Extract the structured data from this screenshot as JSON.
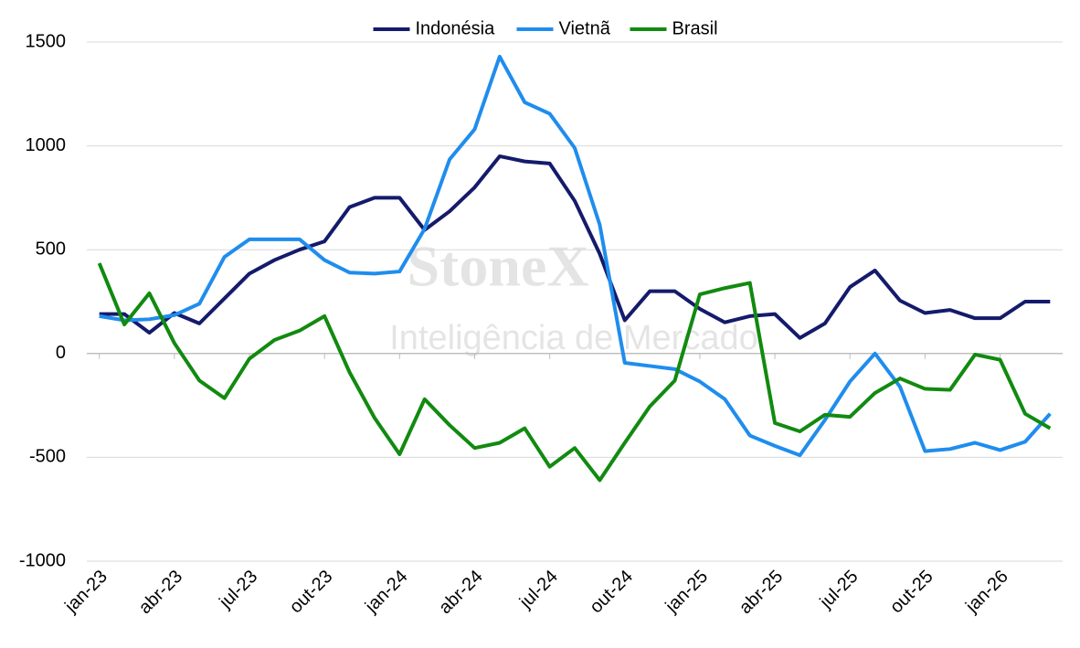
{
  "chart_data": {
    "type": "line",
    "watermark": [
      "StoneX",
      "Inteligência de Mercado"
    ],
    "categories": [
      "jan-23",
      null,
      null,
      "abr-23",
      null,
      null,
      "jul-23",
      null,
      null,
      "out-23",
      null,
      null,
      "jan-24",
      null,
      null,
      "abr-24",
      null,
      null,
      "jul-24",
      null,
      null,
      "out-24",
      null,
      null,
      "jan-25",
      null,
      null,
      "abr-25",
      null,
      null,
      "jul-25",
      null,
      null,
      "out-25",
      null,
      null,
      "jan-26",
      null,
      null
    ],
    "series": [
      {
        "name": "Indonésia",
        "color": "#141b6b",
        "values": [
          190,
          190,
          100,
          195,
          145,
          265,
          385,
          450,
          500,
          540,
          705,
          750,
          750,
          595,
          685,
          800,
          950,
          925,
          915,
          735,
          480,
          160,
          300,
          300,
          215,
          150,
          180,
          190,
          75,
          145,
          320,
          400,
          255,
          195,
          210,
          170,
          170,
          250,
          250
        ]
      },
      {
        "name": "Vietnã",
        "color": "#1f8ded",
        "values": [
          180,
          160,
          165,
          185,
          240,
          465,
          550,
          550,
          550,
          450,
          390,
          385,
          395,
          600,
          935,
          1080,
          1430,
          1210,
          1155,
          990,
          620,
          -45,
          -60,
          -75,
          -135,
          -220,
          -395,
          -445,
          -490,
          -320,
          -135,
          0,
          -160,
          -470,
          -460,
          -430,
          -465,
          -425,
          -290
        ]
      },
      {
        "name": "Brasil",
        "color": "#118a10",
        "values": [
          435,
          140,
          290,
          50,
          -130,
          -215,
          -25,
          65,
          110,
          180,
          -90,
          -310,
          -485,
          -220,
          -345,
          -455,
          -430,
          -360,
          -545,
          -455,
          -610,
          -430,
          -255,
          -130,
          285,
          315,
          340,
          -335,
          -375,
          -295,
          -305,
          -190,
          -120,
          -170,
          -175,
          -5,
          -30,
          -290,
          -360
        ]
      }
    ],
    "ylim": [
      -1000,
      1500
    ],
    "yticks": [
      -1000,
      -500,
      0,
      500,
      1000,
      1500
    ],
    "grid": true,
    "legend": "top"
  }
}
